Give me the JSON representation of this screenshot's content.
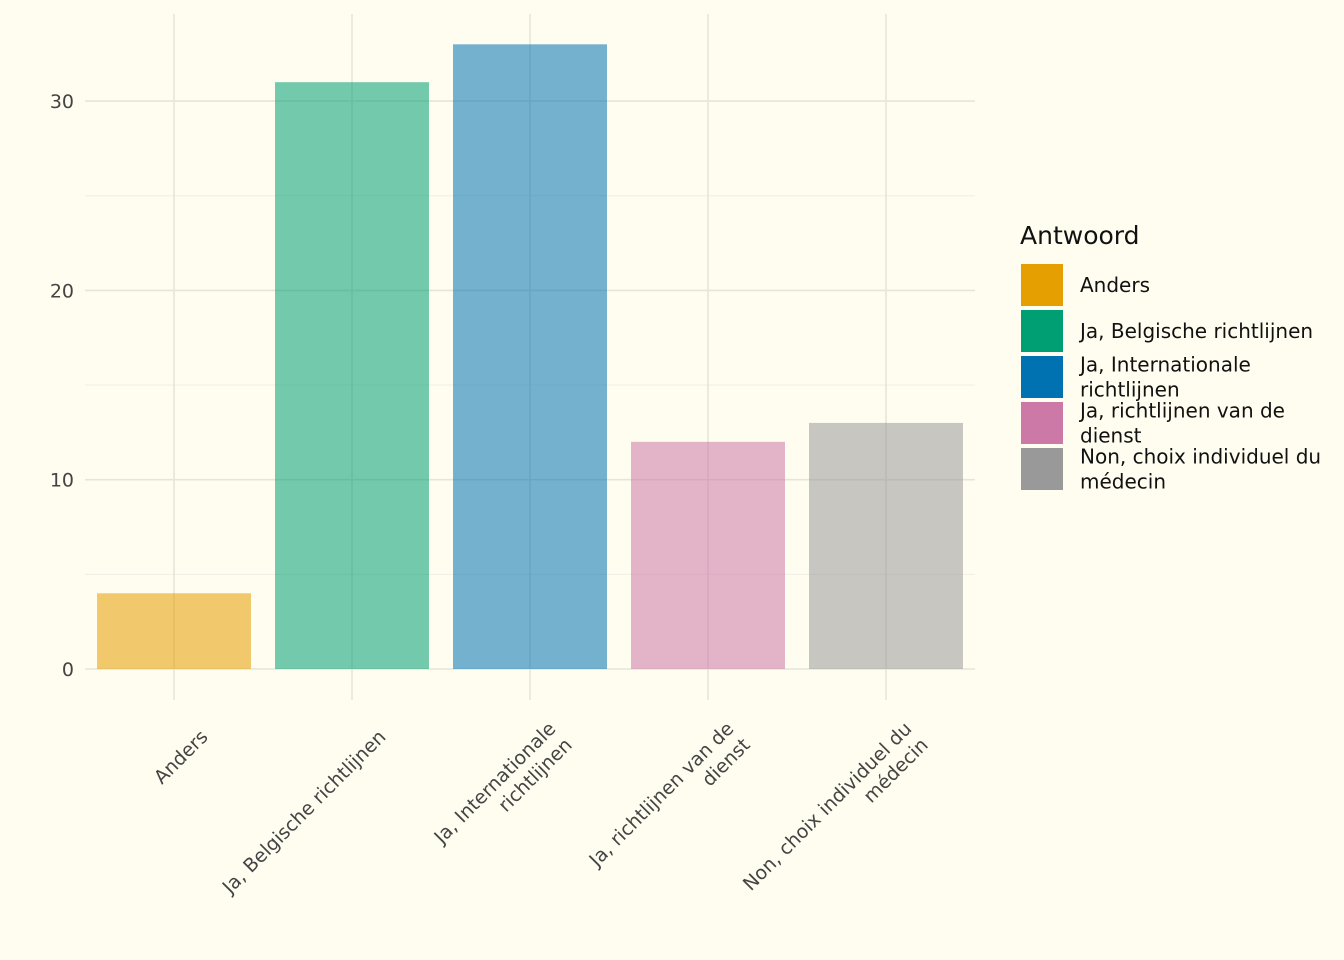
{
  "chart_data": {
    "type": "bar",
    "title": "",
    "xlabel": "",
    "ylabel": "",
    "categories": [
      "Anders",
      "Ja, Belgische richtlijnen",
      "Ja, Internationale richtlijnen",
      "Ja, richtlijnen van de dienst",
      "Non, choix individuel du médecin"
    ],
    "x_tick_lines": [
      [
        "Anders"
      ],
      [
        "Ja, Belgische richtlijnen"
      ],
      [
        "Ja, Internationale",
        "richtlijnen"
      ],
      [
        "Ja, richtlijnen van de",
        "dienst"
      ],
      [
        "Non, choix individuel du",
        "médecin"
      ]
    ],
    "values": [
      4,
      31,
      33,
      12,
      13
    ],
    "colors": [
      "#E69F00",
      "#009E73",
      "#0072B2",
      "#CC79A7",
      "#999999"
    ],
    "bar_opacity": 0.55,
    "ylim": [
      0,
      34.2
    ],
    "y_ticks": [
      0,
      10,
      20,
      30
    ],
    "y_tick_labels": [
      "0",
      "10",
      "20",
      "30"
    ],
    "grid": true,
    "legend": {
      "title": "Antwoord",
      "placement": "right",
      "entries": [
        {
          "lines": [
            "Anders"
          ],
          "color": "#E69F00"
        },
        {
          "lines": [
            "Ja, Belgische richtlijnen"
          ],
          "color": "#009E73"
        },
        {
          "lines": [
            "Ja, Internationale",
            "richtlijnen"
          ],
          "color": "#0072B2"
        },
        {
          "lines": [
            "Ja, richtlijnen van de",
            "dienst"
          ],
          "color": "#CC79A7"
        },
        {
          "lines": [
            "Non, choix individuel du",
            "médecin"
          ],
          "color": "#999999"
        }
      ]
    }
  }
}
